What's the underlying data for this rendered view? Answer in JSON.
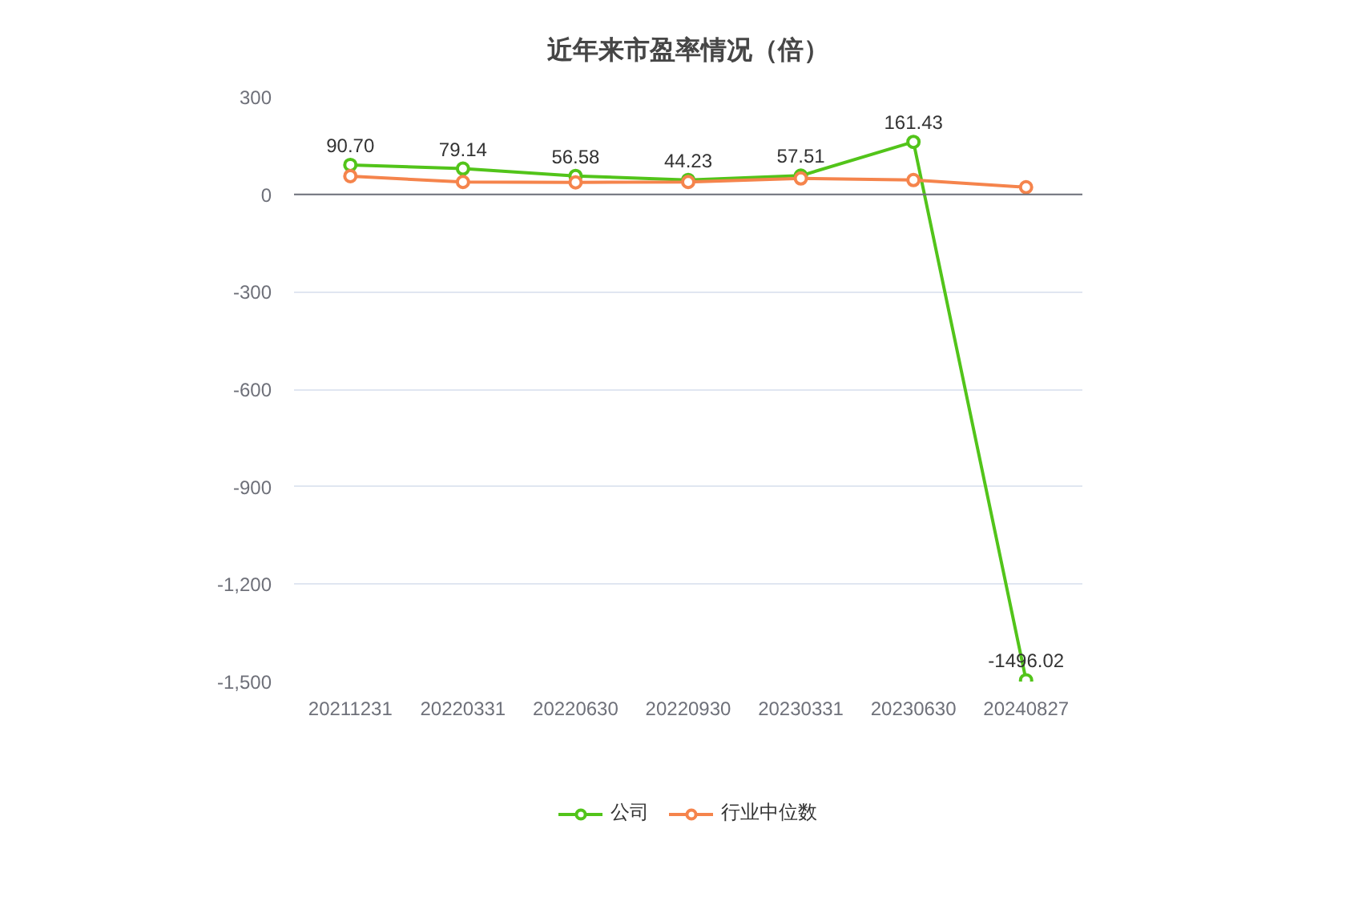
{
  "chart_data": {
    "type": "line",
    "title": "近年来市盈率情况（倍）",
    "categories": [
      "20211231",
      "20220331",
      "20220630",
      "20220930",
      "20230331",
      "20230630",
      "20240827"
    ],
    "series": [
      {
        "name": "公司",
        "color": "#52c41a",
        "values": [
          90.7,
          79.14,
          56.58,
          44.23,
          57.51,
          161.43,
          -1496.02
        ],
        "value_labels": [
          "90.70",
          "79.14",
          "56.58",
          "44.23",
          "57.51",
          "161.43",
          "-1496.02"
        ]
      },
      {
        "name": "行业中位数",
        "color": "#f5844c",
        "values": [
          56,
          38,
          37,
          38,
          49,
          44,
          22
        ]
      }
    ],
    "ylim": [
      -1500,
      300
    ],
    "yticks": [
      {
        "value": -1500,
        "label": "-1,500"
      },
      {
        "value": -1200,
        "label": "-1,200"
      },
      -900,
      -600,
      -300,
      0,
      300
    ],
    "grid": "y",
    "legend": "bottom",
    "marker": "circle",
    "line_style": "solid"
  }
}
